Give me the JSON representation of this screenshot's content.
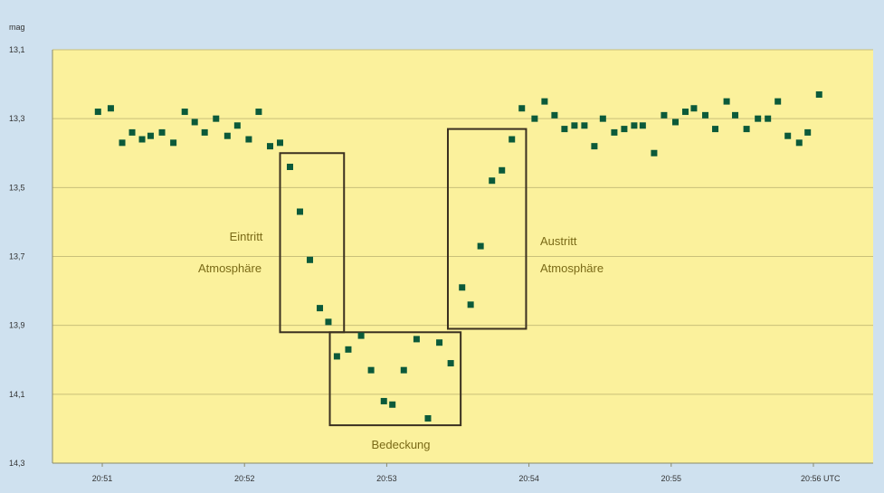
{
  "chart_data": {
    "type": "scatter",
    "y_unit_label": "mag",
    "x_unit_suffix": "UTC",
    "y_axis_inverted": true,
    "ylim": [
      13.1,
      14.3
    ],
    "xlim": [
      -0.35,
      5.42
    ],
    "grid": true,
    "y_ticks": [
      {
        "value": 13.1,
        "label": "13,1"
      },
      {
        "value": 13.3,
        "label": "13,3"
      },
      {
        "value": 13.5,
        "label": "13,5"
      },
      {
        "value": 13.7,
        "label": "13,7"
      },
      {
        "value": 13.9,
        "label": "13,9"
      },
      {
        "value": 14.1,
        "label": "14,1"
      },
      {
        "value": 14.3,
        "label": "14,3"
      }
    ],
    "x_ticks": [
      {
        "value": 0,
        "label": "20:51"
      },
      {
        "value": 1,
        "label": "20:52"
      },
      {
        "value": 2,
        "label": "20:53"
      },
      {
        "value": 3,
        "label": "20:54"
      },
      {
        "value": 4,
        "label": "20:55"
      },
      {
        "value": 5,
        "label": "20:56 UTC"
      }
    ],
    "series": [
      {
        "color": "#0b5a3a",
        "points": [
          [
            -0.03,
            13.28
          ],
          [
            0.06,
            13.27
          ],
          [
            0.14,
            13.37
          ],
          [
            0.21,
            13.34
          ],
          [
            0.28,
            13.36
          ],
          [
            0.34,
            13.35
          ],
          [
            0.42,
            13.34
          ],
          [
            0.5,
            13.37
          ],
          [
            0.58,
            13.28
          ],
          [
            0.65,
            13.31
          ],
          [
            0.72,
            13.34
          ],
          [
            0.8,
            13.3
          ],
          [
            0.88,
            13.35
          ],
          [
            0.95,
            13.32
          ],
          [
            1.03,
            13.36
          ],
          [
            1.1,
            13.28
          ],
          [
            1.18,
            13.38
          ],
          [
            1.25,
            13.37
          ],
          [
            1.32,
            13.44
          ],
          [
            1.39,
            13.57
          ],
          [
            1.46,
            13.71
          ],
          [
            1.53,
            13.85
          ],
          [
            1.59,
            13.89
          ],
          [
            1.65,
            13.99
          ],
          [
            1.73,
            13.97
          ],
          [
            1.82,
            13.93
          ],
          [
            1.89,
            14.03
          ],
          [
            1.98,
            14.12
          ],
          [
            2.04,
            14.13
          ],
          [
            2.12,
            14.03
          ],
          [
            2.21,
            13.94
          ],
          [
            2.29,
            14.17
          ],
          [
            2.37,
            13.95
          ],
          [
            2.45,
            14.01
          ],
          [
            2.53,
            13.79
          ],
          [
            2.59,
            13.84
          ],
          [
            2.66,
            13.67
          ],
          [
            2.74,
            13.48
          ],
          [
            2.81,
            13.45
          ],
          [
            2.88,
            13.36
          ],
          [
            2.95,
            13.27
          ],
          [
            3.04,
            13.3
          ],
          [
            3.11,
            13.25
          ],
          [
            3.18,
            13.29
          ],
          [
            3.25,
            13.33
          ],
          [
            3.32,
            13.32
          ],
          [
            3.39,
            13.32
          ],
          [
            3.46,
            13.38
          ],
          [
            3.52,
            13.3
          ],
          [
            3.6,
            13.34
          ],
          [
            3.67,
            13.33
          ],
          [
            3.74,
            13.32
          ],
          [
            3.8,
            13.32
          ],
          [
            3.88,
            13.4
          ],
          [
            3.95,
            13.29
          ],
          [
            4.03,
            13.31
          ],
          [
            4.1,
            13.28
          ],
          [
            4.16,
            13.27
          ],
          [
            4.24,
            13.29
          ],
          [
            4.31,
            13.33
          ],
          [
            4.39,
            13.25
          ],
          [
            4.45,
            13.29
          ],
          [
            4.53,
            13.33
          ],
          [
            4.61,
            13.3
          ],
          [
            4.68,
            13.3
          ],
          [
            4.75,
            13.25
          ],
          [
            4.82,
            13.35
          ],
          [
            4.9,
            13.37
          ],
          [
            4.96,
            13.34
          ],
          [
            5.04,
            13.23
          ]
        ]
      }
    ],
    "boxes": [
      {
        "name": "eintritt",
        "x0": 1.25,
        "x1": 1.7,
        "y0": 13.4,
        "y1": 13.92
      },
      {
        "name": "bedeckung",
        "x0": 1.6,
        "x1": 2.52,
        "y0": 13.92,
        "y1": 14.19
      },
      {
        "name": "austritt",
        "x0": 2.43,
        "x1": 2.98,
        "y0": 13.33,
        "y1": 13.91
      }
    ],
    "annotations": {
      "eintritt_line1": "Eintritt",
      "eintritt_line2": "Atmosphäre",
      "austritt_line1": "Austritt",
      "austritt_line2": "Atmosphäre",
      "bedeckung": "Bedeckung"
    }
  }
}
